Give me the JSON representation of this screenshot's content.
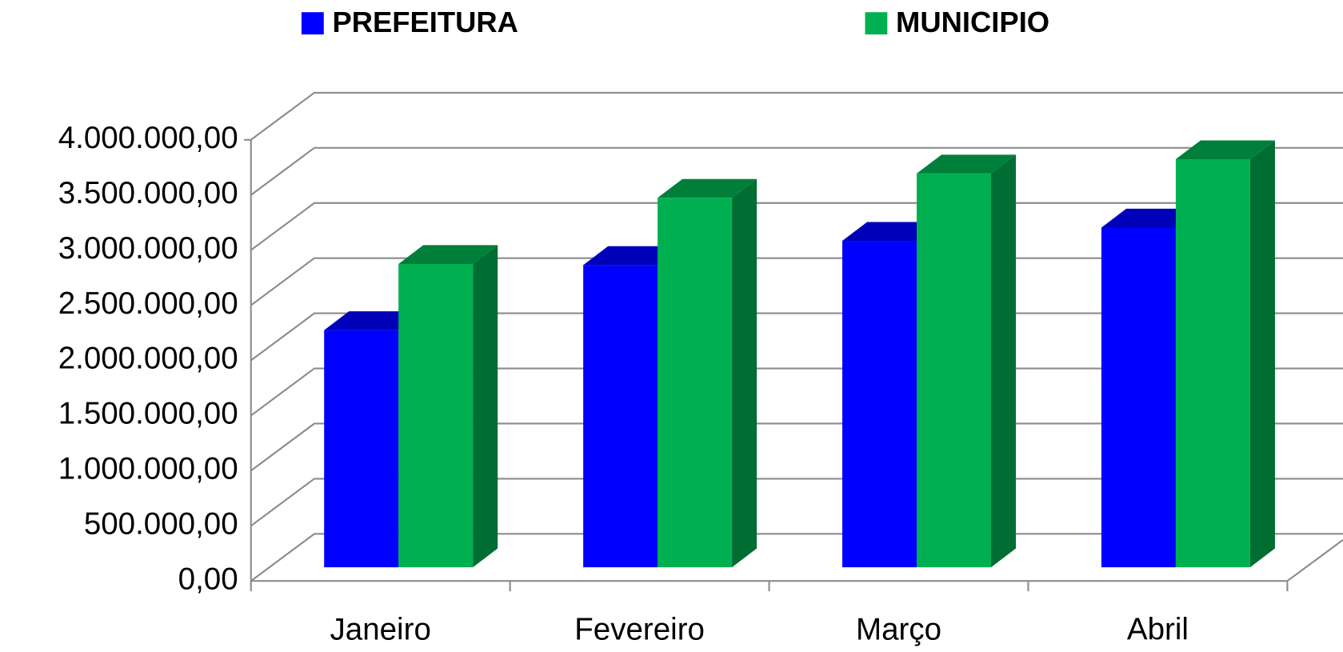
{
  "chart_data": {
    "type": "bar3d",
    "categories": [
      "Janeiro",
      "Fevereiro",
      "Março",
      "Abril"
    ],
    "series": [
      {
        "name": "PREFEITURA",
        "color": "#0000ff",
        "values": [
          2150000,
          2740000,
          2960000,
          3080000
        ]
      },
      {
        "name": "MUNICIPIO",
        "color": "#00b050",
        "values": [
          2750000,
          3350000,
          3570000,
          3700000
        ]
      }
    ],
    "ylim": [
      0,
      4000000
    ],
    "yticks": [
      {
        "value": 0,
        "label": "0,00"
      },
      {
        "value": 500000,
        "label": "500.000,00"
      },
      {
        "value": 1000000,
        "label": "1.000.000,00"
      },
      {
        "value": 1500000,
        "label": "1.500.000,00"
      },
      {
        "value": 2000000,
        "label": "2.000.000,00"
      },
      {
        "value": 2500000,
        "label": "2.500.000,00"
      },
      {
        "value": 3000000,
        "label": "3.000.000,00"
      },
      {
        "value": 3500000,
        "label": "3.500.000,00"
      },
      {
        "value": 4000000,
        "label": "4.000.000,00"
      }
    ],
    "grid": true,
    "legend": "top"
  }
}
